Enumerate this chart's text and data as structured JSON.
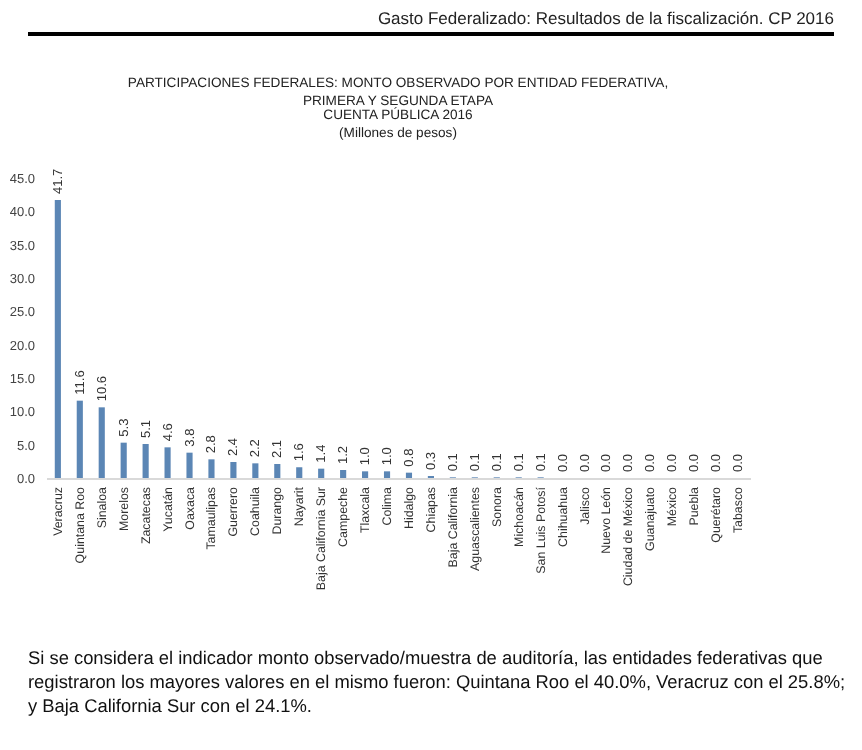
{
  "chart_data": {
    "type": "bar",
    "title": "PARTICIPACIONES FEDERALES: MONTO OBSERVADO POR ENTIDAD FEDERATIVA,\nPRIMERA Y SEGUNDA ETAPA",
    "subtitle": "CUENTA PÚBLICA 2016\n(Millones de pesos)",
    "categories": [
      "Veracruz",
      "Quintana Roo",
      "Sinaloa",
      "Morelos",
      "Zacatecas",
      "Yucatán",
      "Oaxaca",
      "Tamaulipas",
      "Guerrero",
      "Coahuila",
      "Durango",
      "Nayarit",
      "Baja California Sur",
      "Campeche",
      "Tlaxcala",
      "Colima",
      "Hidalgo",
      "Chiapas",
      "Baja California",
      "Aguascalientes",
      "Sonora",
      "Michoacán",
      "San Luis Potosí",
      "Chihuahua",
      "Jalisco",
      "Nuevo León",
      "Ciudad de México",
      "Guanajuato",
      "México",
      "Puebla",
      "Querétaro",
      "Tabasco"
    ],
    "values": [
      41.7,
      11.6,
      10.6,
      5.3,
      5.1,
      4.6,
      3.8,
      2.8,
      2.4,
      2.2,
      2.1,
      1.6,
      1.4,
      1.2,
      1.0,
      1.0,
      0.8,
      0.3,
      0.1,
      0.1,
      0.1,
      0.1,
      0.1,
      0.0,
      0.0,
      0.0,
      0.0,
      0.0,
      0.0,
      0.0,
      0.0,
      0.0
    ],
    "value_labels": [
      "41.7",
      "11.6",
      "10.6",
      "5.3",
      "5.1",
      "4.6",
      "3.8",
      "2.8",
      "2.4",
      "2.2",
      "2.1",
      "1.6",
      "1.4",
      "1.2",
      "1.0",
      "1.0",
      "0.8",
      "0.3",
      "0.1",
      "0.1",
      "0.1",
      "0.1",
      "0.1",
      "0.0",
      "0.0",
      "0.0",
      "0.0",
      "0.0",
      "0.0",
      "0.0",
      "0.0",
      "0.0"
    ],
    "color": "#5b86b5",
    "ylim": [
      0,
      45
    ],
    "yticks": [
      {
        "value": 0,
        "label": "0.0"
      },
      {
        "value": 5,
        "label": "5.0"
      },
      {
        "value": 10,
        "label": "10.0"
      },
      {
        "value": 15,
        "label": "15.0"
      },
      {
        "value": 20,
        "label": "20.0"
      },
      {
        "value": 25,
        "label": "25.0"
      },
      {
        "value": 30,
        "label": "30.0"
      },
      {
        "value": 35,
        "label": "35.0"
      },
      {
        "value": 40,
        "label": "40.0"
      },
      {
        "value": 45,
        "label": "45.0"
      }
    ],
    "annotations": [
      "Gasto Federalizado: Resultados de la fiscalización. CP 2016",
      "Si se considera el indicador monto observado/muestra de auditoría, las entidades federativas que registraron los mayores valores en el mismo fueron: Quintana Roo el 40.0%, Veracruz con el 25.8%; y Baja California Sur con el 24.1%."
    ]
  }
}
